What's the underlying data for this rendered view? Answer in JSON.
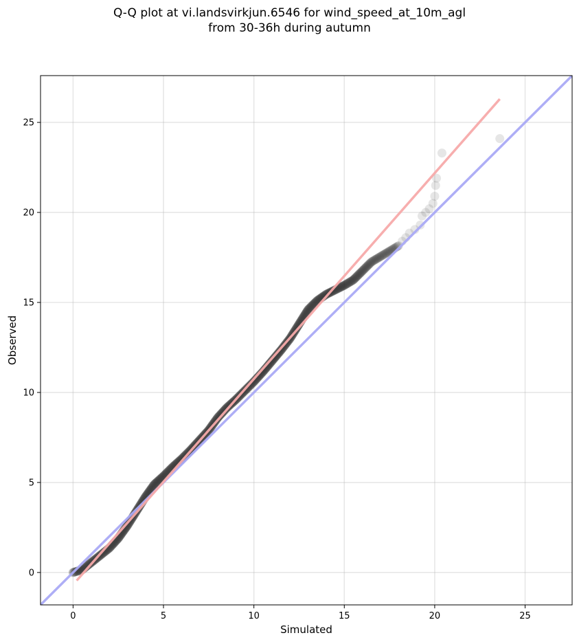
{
  "chart_data": {
    "type": "scatter",
    "title_line1": "Q-Q plot at vi.landsvirkjun.6546 for wind_speed_at_10m_agl",
    "title_line2": "from 30-36h during autumn",
    "xlabel": "Simulated",
    "ylabel": "Observed",
    "xlim": [
      -1.8,
      27.6
    ],
    "ylim": [
      -1.8,
      27.6
    ],
    "xticks": [
      0,
      5,
      10,
      15,
      20,
      25
    ],
    "yticks": [
      0,
      5,
      10,
      15,
      20,
      25
    ],
    "grid": true,
    "colors": {
      "points": "#333333",
      "identity_line": "#aaaaf5",
      "fit_line": "#f7aaaa"
    },
    "identity_line": {
      "x": [
        -1.8,
        27.6
      ],
      "y": [
        -1.8,
        27.6
      ]
    },
    "fit_line": {
      "x": [
        0.2,
        23.6
      ],
      "y": [
        -0.45,
        26.3
      ]
    },
    "quantile_curve": {
      "x": [
        0.0,
        0.5,
        1.0,
        1.5,
        2.0,
        2.5,
        3.0,
        3.5,
        4.0,
        4.5,
        5.0,
        5.5,
        6.0,
        6.5,
        7.0,
        7.5,
        8.0,
        8.5,
        9.0,
        9.5,
        10.0,
        10.5,
        11.0,
        11.5,
        12.0,
        12.5,
        13.0,
        13.5,
        14.0,
        14.5,
        15.0,
        15.5,
        16.0,
        16.5,
        17.0,
        17.5,
        18.0
      ],
      "y": [
        0.0,
        0.15,
        0.55,
        0.95,
        1.35,
        1.9,
        2.6,
        3.4,
        4.2,
        4.9,
        5.35,
        5.85,
        6.3,
        6.8,
        7.35,
        7.9,
        8.6,
        9.15,
        9.6,
        10.1,
        10.6,
        11.15,
        11.75,
        12.35,
        13.0,
        13.8,
        14.6,
        15.1,
        15.45,
        15.7,
        15.95,
        16.25,
        16.75,
        17.25,
        17.55,
        17.85,
        18.15
      ]
    },
    "tail_points": {
      "x": [
        18.2,
        18.4,
        18.6,
        18.9,
        19.2,
        19.3,
        19.5,
        19.7,
        19.9,
        20.0,
        20.05,
        20.1,
        20.4,
        23.6
      ],
      "y": [
        18.4,
        18.6,
        18.85,
        19.05,
        19.3,
        19.8,
        20.0,
        20.2,
        20.5,
        20.9,
        21.5,
        21.9,
        23.3,
        24.1
      ]
    }
  }
}
